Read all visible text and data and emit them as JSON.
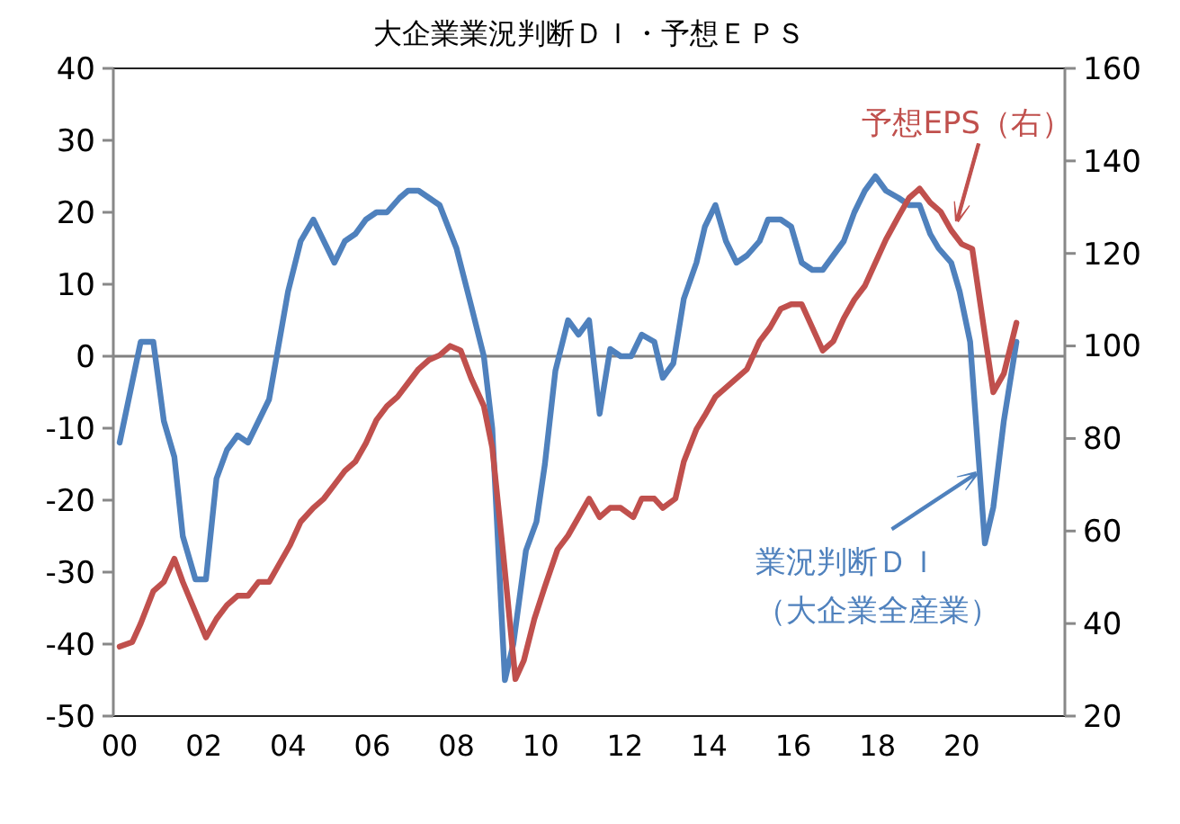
{
  "chart_data": {
    "type": "line",
    "title": "大企業業況判断ＤＩ・予想ＥＰＳ",
    "xlim": [
      1999.85,
      2022.45
    ],
    "xticks": [
      {
        "value": 2000,
        "label": "00"
      },
      {
        "value": 2002,
        "label": "02"
      },
      {
        "value": 2004,
        "label": "04"
      },
      {
        "value": 2006,
        "label": "06"
      },
      {
        "value": 2008,
        "label": "08"
      },
      {
        "value": 2010,
        "label": "10"
      },
      {
        "value": 2012,
        "label": "12"
      },
      {
        "value": 2014,
        "label": "14"
      },
      {
        "value": 2016,
        "label": "16"
      },
      {
        "value": 2018,
        "label": "18"
      },
      {
        "value": 2020,
        "label": "20"
      }
    ],
    "ylim": [
      -50,
      40
    ],
    "yticks": [
      -50,
      -40,
      -30,
      -20,
      -10,
      0,
      10,
      20,
      30,
      40
    ],
    "y2lim": [
      20,
      160
    ],
    "y2ticks": [
      20,
      40,
      60,
      80,
      100,
      120,
      140,
      160
    ],
    "ref_lines": [
      {
        "axis": "y",
        "value": 0,
        "color": "#808080"
      }
    ],
    "series": [
      {
        "name": "業況判断ＤＩ（大企業全産業）",
        "color": "#4f81bd",
        "x": [
          2000.0,
          2000.5,
          2000.8,
          2001.05,
          2001.3,
          2001.5,
          2001.8,
          2002.05,
          2002.3,
          2002.55,
          2002.8,
          2003.05,
          2003.55,
          2004.0,
          2004.3,
          2004.6,
          2005.1,
          2005.35,
          2005.6,
          2005.85,
          2006.1,
          2006.35,
          2006.65,
          2006.85,
          2007.1,
          2007.6,
          2008.0,
          2008.35,
          2008.65,
          2008.85,
          2009.15,
          2009.35,
          2009.65,
          2009.9,
          2010.1,
          2010.35,
          2010.65,
          2010.9,
          2011.15,
          2011.4,
          2011.65,
          2011.9,
          2012.15,
          2012.4,
          2012.7,
          2012.9,
          2013.15,
          2013.4,
          2013.7,
          2013.9,
          2014.15,
          2014.4,
          2014.65,
          2014.9,
          2015.2,
          2015.4,
          2015.7,
          2015.95,
          2016.2,
          2016.45,
          2016.7,
          2016.95,
          2017.2,
          2017.45,
          2017.7,
          2017.95,
          2018.2,
          2018.5,
          2018.75,
          2019.0,
          2019.25,
          2019.45,
          2019.75,
          2019.95,
          2020.2,
          2020.55,
          2020.75,
          2021.0,
          2021.3
        ],
        "values": [
          -12,
          2,
          2,
          -9,
          -14,
          -25,
          -31,
          -31,
          -17,
          -13,
          -11,
          -12,
          -6,
          9,
          16,
          19,
          13,
          16,
          17,
          19,
          20,
          20,
          22,
          23,
          23,
          21,
          15,
          7,
          0,
          -10,
          -45,
          -40,
          -27,
          -23,
          -15,
          -2,
          5,
          3,
          5,
          -8,
          1,
          0,
          0,
          3,
          2,
          -3,
          -1,
          8,
          13,
          18,
          21,
          16,
          13,
          14,
          16,
          19,
          19,
          18,
          13,
          12,
          12,
          14,
          16,
          20,
          23,
          25,
          23,
          22,
          21,
          21,
          17,
          15,
          13,
          9,
          2,
          -26,
          -21,
          -9,
          2
        ]
      },
      {
        "name": "予想EPS（右）",
        "color": "#c0504d",
        "axis": "y2",
        "x": [
          2000.0,
          2000.3,
          2000.5,
          2000.8,
          2001.05,
          2001.3,
          2001.5,
          2002.05,
          2002.3,
          2002.55,
          2002.8,
          2003.05,
          2003.3,
          2003.55,
          2003.8,
          2004.05,
          2004.3,
          2004.6,
          2004.85,
          2005.1,
          2005.35,
          2005.6,
          2005.85,
          2006.1,
          2006.35,
          2006.6,
          2006.85,
          2007.1,
          2007.35,
          2007.6,
          2007.85,
          2008.1,
          2008.35,
          2008.65,
          2008.85,
          2009.1,
          2009.4,
          2009.6,
          2009.85,
          2010.1,
          2010.4,
          2010.65,
          2010.9,
          2011.15,
          2011.4,
          2011.65,
          2011.9,
          2012.2,
          2012.4,
          2012.7,
          2012.9,
          2013.2,
          2013.4,
          2013.7,
          2013.9,
          2014.15,
          2014.4,
          2014.65,
          2014.9,
          2015.2,
          2015.45,
          2015.7,
          2015.95,
          2016.2,
          2016.45,
          2016.7,
          2016.95,
          2017.2,
          2017.45,
          2017.7,
          2017.95,
          2018.2,
          2018.5,
          2018.75,
          2019.0,
          2019.25,
          2019.5,
          2019.75,
          2020.0,
          2020.25,
          2020.75,
          2021.0,
          2021.3
        ],
        "values": [
          35,
          36,
          40,
          47,
          49,
          54,
          49,
          37,
          41,
          44,
          46,
          46,
          49,
          49,
          53,
          57,
          62,
          65,
          67,
          70,
          73,
          75,
          79,
          84,
          87,
          89,
          92,
          95,
          97,
          98,
          100,
          99,
          93,
          87,
          78,
          56,
          28,
          32,
          41,
          48,
          56,
          59,
          63,
          67,
          63,
          65,
          65,
          63,
          67,
          67,
          65,
          67,
          75,
          82,
          85,
          89,
          91,
          93,
          95,
          101,
          104,
          108,
          109,
          109,
          104,
          99,
          101,
          106,
          110,
          113,
          118,
          123,
          128,
          132,
          134,
          131,
          129,
          125,
          122,
          121,
          90,
          94,
          105
        ]
      }
    ]
  }
}
